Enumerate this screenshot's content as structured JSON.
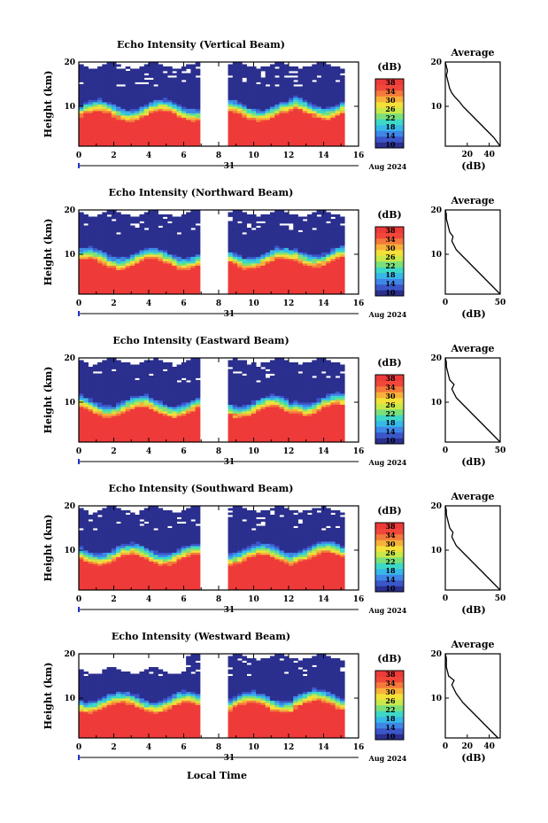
{
  "figure": {
    "bottom_label": "Local Time",
    "date_label": "Aug 2024",
    "day_label": "31"
  },
  "colorbar": {
    "unit": "(dB)",
    "ticks": [
      "38",
      "34",
      "30",
      "26",
      "22",
      "18",
      "14",
      "10"
    ],
    "colors": [
      "#2b2f8e",
      "#3a56c8",
      "#3f86e6",
      "#36b8e8",
      "#3ed8c7",
      "#7be07a",
      "#c9e84a",
      "#f4e03a",
      "#f7b13b",
      "#f37a3b",
      "#f0473a",
      "#ee3a39"
    ]
  },
  "chart_data": [
    {
      "type": "heatmap",
      "title": "Echo Intensity (Vertical Beam)",
      "ylabel": "Height (km)",
      "y_ticks": [
        "10",
        "20"
      ],
      "x_ticks": [
        "0",
        "2",
        "4",
        "6",
        "8",
        "10",
        "12",
        "14",
        "16"
      ],
      "xlim": [
        0,
        16
      ],
      "ylim": [
        1,
        20
      ],
      "data_gap_hours": [
        7,
        8.5
      ],
      "avg": {
        "title": "Average",
        "xlabel": "(dB)",
        "x_ticks": [
          "20",
          "40"
        ],
        "xlim": [
          0,
          50
        ],
        "profile": [
          [
            50,
            1
          ],
          [
            47,
            2
          ],
          [
            44,
            3
          ],
          [
            40,
            4
          ],
          [
            36,
            5
          ],
          [
            32,
            6
          ],
          [
            28,
            7
          ],
          [
            24,
            8
          ],
          [
            20,
            9
          ],
          [
            16,
            10
          ],
          [
            13,
            11
          ],
          [
            9,
            12
          ],
          [
            6,
            13
          ],
          [
            4,
            14
          ],
          [
            3,
            15
          ],
          [
            2,
            16
          ],
          [
            1,
            17
          ],
          [
            2,
            18
          ],
          [
            1,
            19
          ],
          [
            0,
            20
          ]
        ]
      }
    },
    {
      "type": "heatmap",
      "title": "Echo Intensity (Northward Beam)",
      "ylabel": "Height (km)",
      "y_ticks": [
        "10",
        "20"
      ],
      "x_ticks": [
        "0",
        "2",
        "4",
        "6",
        "8",
        "10",
        "12",
        "14",
        "16"
      ],
      "xlim": [
        0,
        16
      ],
      "ylim": [
        1,
        20
      ],
      "data_gap_hours": [
        7,
        8.5
      ],
      "avg": {
        "title": "Average",
        "xlabel": "(dB)",
        "x_ticks": [
          "0",
          "50"
        ],
        "xlim": [
          0,
          50
        ],
        "profile": [
          [
            50,
            1
          ],
          [
            46,
            2
          ],
          [
            42,
            3
          ],
          [
            38,
            4
          ],
          [
            34,
            5
          ],
          [
            30,
            6
          ],
          [
            26,
            7
          ],
          [
            22,
            8
          ],
          [
            18,
            9
          ],
          [
            14,
            10
          ],
          [
            10,
            11
          ],
          [
            8,
            12
          ],
          [
            6,
            13
          ],
          [
            7,
            14
          ],
          [
            4,
            15
          ],
          [
            3,
            16
          ],
          [
            2,
            17
          ],
          [
            1,
            18
          ],
          [
            1,
            19
          ],
          [
            0,
            20
          ]
        ]
      }
    },
    {
      "type": "heatmap",
      "title": "Echo Intensity (Eastward Beam)",
      "ylabel": "Height (km)",
      "y_ticks": [
        "10",
        "20"
      ],
      "x_ticks": [
        "0",
        "2",
        "4",
        "6",
        "8",
        "10",
        "12",
        "14",
        "16"
      ],
      "xlim": [
        0,
        16
      ],
      "ylim": [
        1,
        20
      ],
      "data_gap_hours": [
        7,
        8.5
      ],
      "avg": {
        "title": "Average",
        "xlabel": "(dB)",
        "x_ticks": [
          "0",
          "50"
        ],
        "xlim": [
          0,
          50
        ],
        "profile": [
          [
            50,
            1
          ],
          [
            46,
            2
          ],
          [
            42,
            3
          ],
          [
            38,
            4
          ],
          [
            34,
            5
          ],
          [
            30,
            6
          ],
          [
            26,
            7
          ],
          [
            22,
            8
          ],
          [
            18,
            9
          ],
          [
            14,
            10
          ],
          [
            10,
            11
          ],
          [
            8,
            12
          ],
          [
            6,
            13
          ],
          [
            8,
            14
          ],
          [
            4,
            15
          ],
          [
            3,
            16
          ],
          [
            2,
            17
          ],
          [
            1,
            18
          ],
          [
            1,
            19
          ],
          [
            0,
            20
          ]
        ]
      }
    },
    {
      "type": "heatmap",
      "title": "Echo Intensity (Southward Beam)",
      "ylabel": "Height (km)",
      "y_ticks": [
        "10",
        "20"
      ],
      "x_ticks": [
        "0",
        "2",
        "4",
        "6",
        "8",
        "10",
        "12",
        "14",
        "16"
      ],
      "xlim": [
        0,
        16
      ],
      "ylim": [
        1,
        20
      ],
      "data_gap_hours": [
        7,
        8.5
      ],
      "avg": {
        "title": "Average",
        "xlabel": "(dB)",
        "x_ticks": [
          "0",
          "50"
        ],
        "xlim": [
          0,
          50
        ],
        "profile": [
          [
            50,
            1
          ],
          [
            46,
            2
          ],
          [
            42,
            3
          ],
          [
            38,
            4
          ],
          [
            34,
            5
          ],
          [
            30,
            6
          ],
          [
            26,
            7
          ],
          [
            22,
            8
          ],
          [
            18,
            9
          ],
          [
            14,
            10
          ],
          [
            10,
            11
          ],
          [
            8,
            12
          ],
          [
            6,
            13
          ],
          [
            7,
            14
          ],
          [
            4,
            15
          ],
          [
            3,
            16
          ],
          [
            2,
            17
          ],
          [
            1,
            18
          ],
          [
            1,
            19
          ],
          [
            0,
            20
          ]
        ]
      }
    },
    {
      "type": "heatmap",
      "title": "Echo Intensity (Westward Beam)",
      "ylabel": "Height (km)",
      "y_ticks": [
        "10",
        "20"
      ],
      "x_ticks": [
        "0",
        "2",
        "4",
        "6",
        "8",
        "10",
        "12",
        "14",
        "16"
      ],
      "xlim": [
        0,
        16
      ],
      "ylim": [
        1,
        20
      ],
      "data_gap_hours": [
        7,
        8.5
      ],
      "avg": {
        "title": "Average",
        "xlabel": "(dB)",
        "x_ticks": [
          "0",
          "20",
          "40"
        ],
        "xlim": [
          0,
          50
        ],
        "profile": [
          [
            48,
            1
          ],
          [
            44,
            2
          ],
          [
            40,
            3
          ],
          [
            36,
            4
          ],
          [
            32,
            5
          ],
          [
            28,
            6
          ],
          [
            24,
            7
          ],
          [
            20,
            8
          ],
          [
            16,
            9
          ],
          [
            13,
            10
          ],
          [
            10,
            11
          ],
          [
            8,
            12
          ],
          [
            6,
            13
          ],
          [
            8,
            14
          ],
          [
            3,
            15
          ],
          [
            2,
            16
          ],
          [
            1,
            17
          ],
          [
            1,
            18
          ],
          [
            1,
            19
          ],
          [
            0,
            20
          ]
        ]
      }
    }
  ]
}
